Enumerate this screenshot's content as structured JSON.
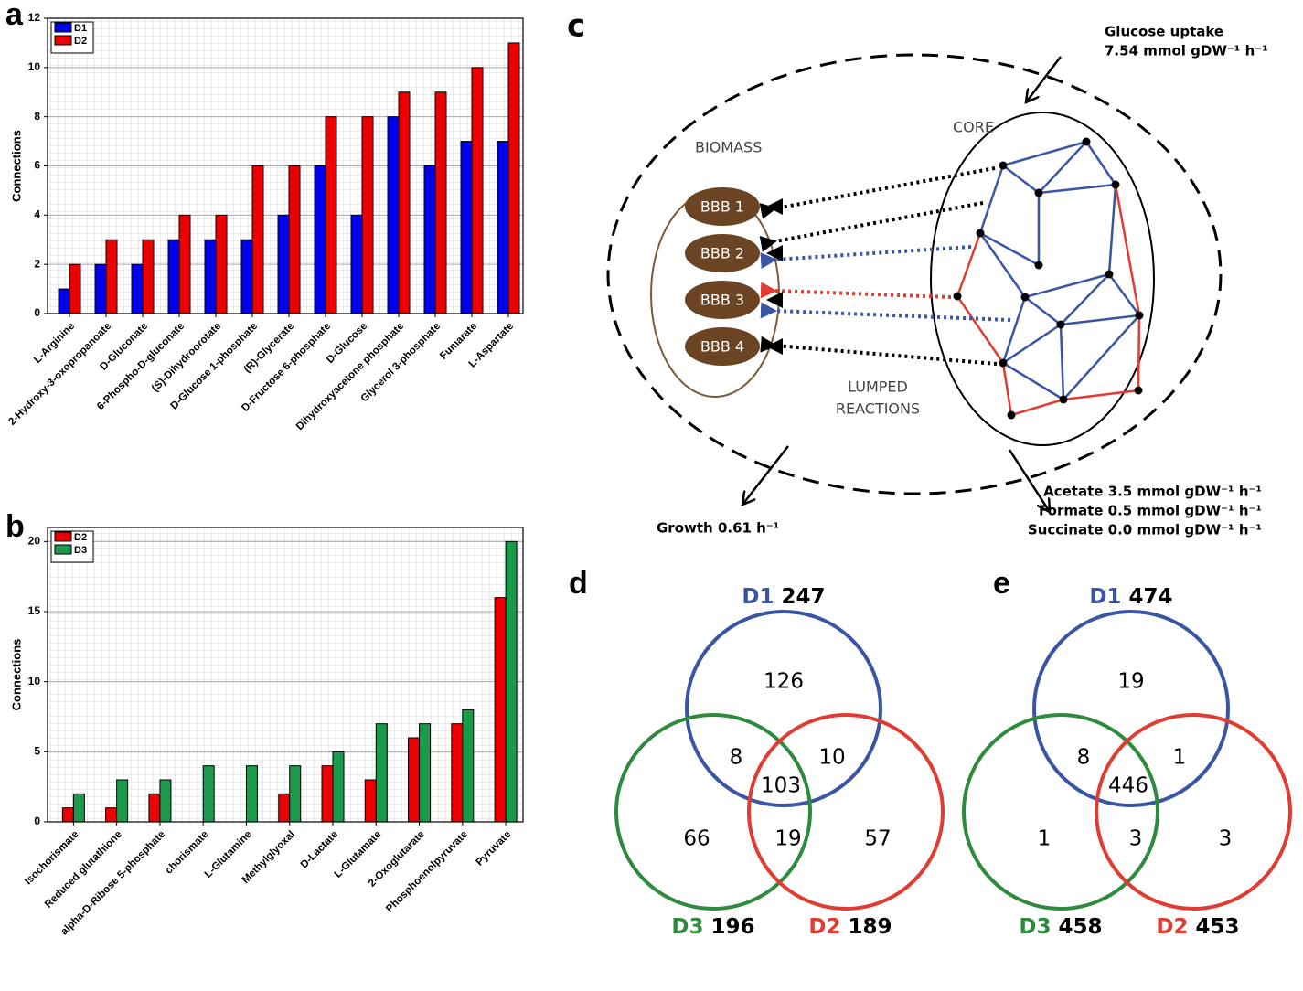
{
  "chart_data": [
    {
      "type": "bar",
      "label": "a",
      "ylabel": "Connections",
      "categories": [
        "L-Arginine",
        "2-Hydroxy-3-oxopropanoate",
        "D-Gluconate",
        "6-Phospho-D-gluconate",
        "(S)-Dihydroorotate",
        "D-Glucose 1-phosphate",
        "(R)-Glycerate",
        "D-Fructose 6-phosphate",
        "D-Glucose",
        "Dihydroxyacetone phosphate",
        "Glycerol 3-phosphate",
        "Fumarate",
        "L-Aspartate"
      ],
      "series": [
        {
          "name": "D1",
          "color": "#0000ee",
          "values": [
            1,
            2,
            2,
            3,
            3,
            3,
            4,
            6,
            4,
            8,
            6,
            7,
            7
          ]
        },
        {
          "name": "D2",
          "color": "#ee0000",
          "values": [
            2,
            3,
            3,
            4,
            4,
            6,
            6,
            8,
            8,
            9,
            9,
            10,
            11
          ]
        }
      ],
      "ylim": [
        0,
        12
      ],
      "yticks": [
        0,
        2,
        4,
        6,
        8,
        10,
        12
      ],
      "grid": true,
      "legend": "upper left"
    },
    {
      "type": "bar",
      "label": "b",
      "ylabel": "Connections",
      "categories": [
        "Isochorismate",
        "Reduced glutathione",
        "alpha-D-Ribose 5-phosphate",
        "chorismate",
        "L-Glutamine",
        "Methylglyoxal",
        "D-Lactate",
        "L-Glutamate",
        "2-Oxoglutarate",
        "Phosphoenolpyruvate",
        "Pyruvate"
      ],
      "series": [
        {
          "name": "D2",
          "color": "#ee0000",
          "values": [
            1,
            1,
            2,
            0,
            0,
            2,
            4,
            3,
            6,
            7,
            16
          ]
        },
        {
          "name": "D3",
          "color": "#1a9a4a",
          "values": [
            2,
            3,
            3,
            4,
            4,
            4,
            5,
            7,
            7,
            8,
            20
          ]
        }
      ],
      "ylim": [
        0,
        21
      ],
      "yticks": [
        0,
        5,
        10,
        15,
        20
      ],
      "grid": true,
      "legend": "upper left"
    }
  ],
  "diagram": {
    "label": "c",
    "glucose": [
      "Glucose uptake",
      "7.54 mmol gDW⁻¹ h⁻¹"
    ],
    "core": "CORE",
    "biomass": "BIOMASS",
    "blocks": [
      "BBB 1",
      "BBB 2",
      "BBB 3",
      "BBB 4"
    ],
    "lumped": [
      "LUMPED",
      "REACTIONS"
    ],
    "growth": "Growth 0.61 h⁻¹",
    "outputs": [
      "Acetate 3.5 mmol gDW⁻¹ h⁻¹",
      "Formate 0.5 mmol gDW⁻¹ h⁻¹",
      "Succinate 0.0 mmol gDW⁻¹ h⁻¹"
    ]
  },
  "venns": [
    {
      "label": "d",
      "sets": [
        {
          "name": "D1",
          "size": 247,
          "color": "#3a55a4"
        },
        {
          "name": "D3",
          "size": 196,
          "color": "#2e8b3e"
        },
        {
          "name": "D2",
          "size": 189,
          "color": "#e03c31"
        }
      ],
      "regions": {
        "d1_only": 126,
        "d1_d3": 8,
        "d1_d2": 10,
        "all": 103,
        "d3_only": 66,
        "d3_d2": 19,
        "d2_only": 57
      }
    },
    {
      "label": "e",
      "sets": [
        {
          "name": "D1",
          "size": 474,
          "color": "#3a55a4"
        },
        {
          "name": "D3",
          "size": 458,
          "color": "#2e8b3e"
        },
        {
          "name": "D2",
          "size": 453,
          "color": "#e03c31"
        }
      ],
      "regions": {
        "d1_only": 19,
        "d1_d3": 8,
        "d1_d2": 1,
        "all": 446,
        "d3_only": 1,
        "d3_d2": 3,
        "d2_only": 3
      }
    }
  ]
}
